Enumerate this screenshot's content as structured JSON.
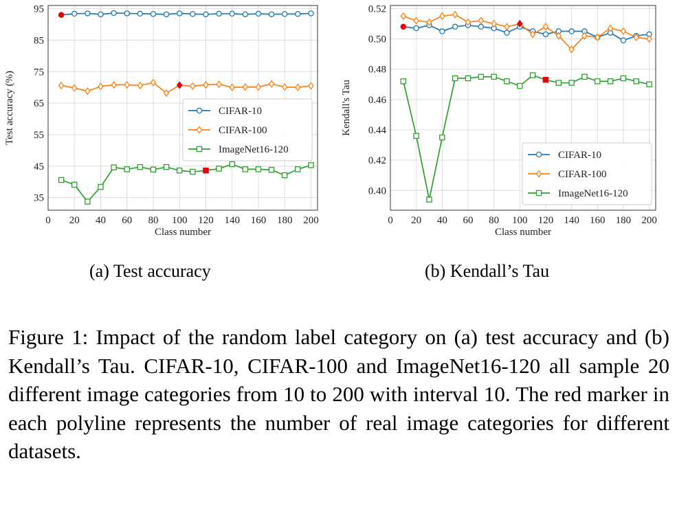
{
  "chart_data": [
    {
      "type": "line",
      "x": [
        10,
        20,
        30,
        40,
        50,
        60,
        70,
        80,
        90,
        100,
        110,
        120,
        130,
        140,
        150,
        160,
        170,
        180,
        190,
        200
      ],
      "ylabel": "Test accuracy (%)",
      "xlabel": "Class number",
      "xlim": [
        0,
        205
      ],
      "ylim": [
        31,
        96
      ],
      "xticks": [
        0,
        20,
        40,
        60,
        80,
        100,
        120,
        140,
        160,
        180,
        200
      ],
      "yticks": [
        35,
        45,
        55,
        65,
        75,
        85,
        95
      ],
      "grid": true,
      "legend_position": "center-right",
      "series": [
        {
          "name": "CIFAR-10",
          "color": "#1f77b4",
          "marker": "circle",
          "red_marker_x": 10,
          "values": [
            93.0,
            93.4,
            93.5,
            93.2,
            93.6,
            93.5,
            93.4,
            93.3,
            93.2,
            93.5,
            93.3,
            93.2,
            93.4,
            93.4,
            93.2,
            93.4,
            93.2,
            93.3,
            93.3,
            93.5
          ]
        },
        {
          "name": "CIFAR-100",
          "color": "#ff7f0e",
          "marker": "diamond",
          "red_marker_x": 100,
          "values": [
            70.6,
            69.8,
            68.8,
            70.3,
            70.8,
            70.8,
            70.6,
            71.5,
            68.2,
            70.7,
            70.4,
            70.8,
            71.0,
            70.0,
            70.1,
            70.1,
            71.1,
            70.1,
            70.0,
            70.5
          ]
        },
        {
          "name": "ImageNet16-120",
          "color": "#2ca02c",
          "marker": "square",
          "red_marker_x": 120,
          "values": [
            40.6,
            39.1,
            33.7,
            38.4,
            44.6,
            44.0,
            44.7,
            43.9,
            44.7,
            43.6,
            43.2,
            43.6,
            44.2,
            45.6,
            44.0,
            44.0,
            43.8,
            42.1,
            44.0,
            45.3
          ]
        }
      ]
    },
    {
      "type": "line",
      "x": [
        10,
        20,
        30,
        40,
        50,
        60,
        70,
        80,
        90,
        100,
        110,
        120,
        130,
        140,
        150,
        160,
        170,
        180,
        190,
        200
      ],
      "ylabel": "Kendall's Tau",
      "xlabel": "Class number",
      "xlim": [
        0,
        205
      ],
      "ylim": [
        0.387,
        0.522
      ],
      "xticks": [
        0,
        20,
        40,
        60,
        80,
        100,
        120,
        140,
        160,
        180,
        200
      ],
      "yticks": [
        0.4,
        0.42,
        0.44,
        0.46,
        0.48,
        0.5,
        0.52
      ],
      "ytick_labels": [
        "0.40",
        "0.42",
        "0.44",
        "0.46",
        "0.48",
        "0.50",
        "0.52"
      ],
      "grid": true,
      "legend_position": "lower-right",
      "series": [
        {
          "name": "CIFAR-10",
          "color": "#1f77b4",
          "marker": "circle",
          "red_marker_x": 10,
          "values": [
            0.508,
            0.507,
            0.509,
            0.505,
            0.508,
            0.509,
            0.508,
            0.507,
            0.504,
            0.508,
            0.505,
            0.503,
            0.505,
            0.505,
            0.505,
            0.501,
            0.504,
            0.499,
            0.502,
            0.503
          ]
        },
        {
          "name": "CIFAR-100",
          "color": "#ff7f0e",
          "marker": "diamond",
          "red_marker_x": 100,
          "values": [
            0.515,
            0.512,
            0.511,
            0.515,
            0.516,
            0.511,
            0.512,
            0.51,
            0.508,
            0.51,
            0.503,
            0.508,
            0.502,
            0.493,
            0.502,
            0.501,
            0.507,
            0.505,
            0.501,
            0.5
          ]
        },
        {
          "name": "ImageNet16-120",
          "color": "#2ca02c",
          "marker": "square",
          "red_marker_x": 120,
          "values": [
            0.472,
            0.436,
            0.394,
            0.435,
            0.474,
            0.474,
            0.475,
            0.475,
            0.472,
            0.469,
            0.476,
            0.473,
            0.471,
            0.471,
            0.475,
            0.472,
            0.472,
            0.474,
            0.472,
            0.47
          ]
        }
      ]
    }
  ],
  "sub_captions": {
    "a": "(a)  Test accuracy",
    "b": "(b)  Kendall’s Tau"
  },
  "caption": "Figure 1: Impact of the random label category on (a) test accuracy and (b) Kendall’s Tau. CIFAR-10, CIFAR-100 and ImageNet16-120 all sample 20 different image categories from 10 to 200 with interval 10. The red marker in each polyline represents the number of real image categories for different datasets.",
  "red_marker_color": "#e8000b"
}
